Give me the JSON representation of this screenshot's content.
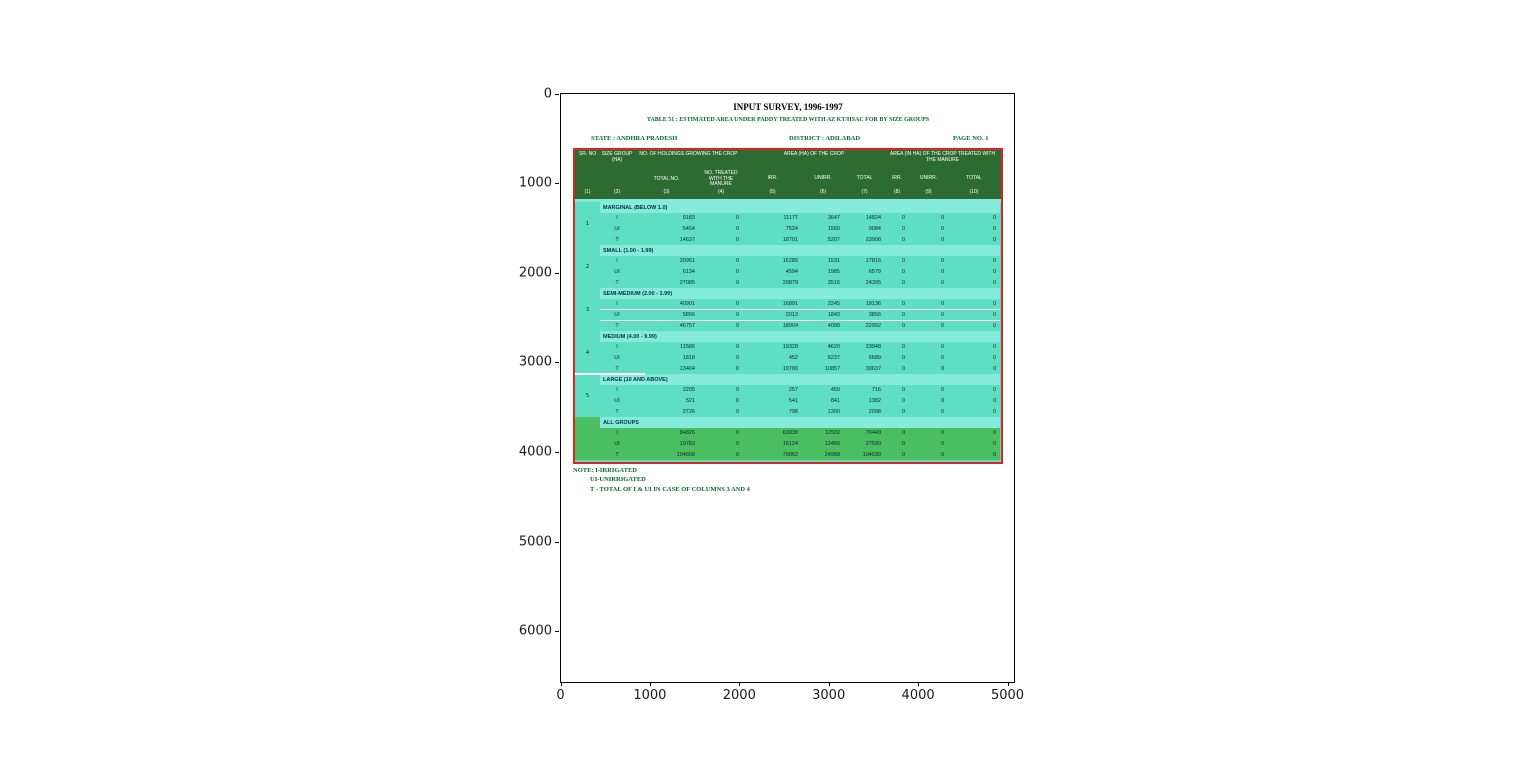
{
  "figure": {
    "x_axis": {
      "ticks": [
        "0",
        "1000",
        "2000",
        "3000",
        "4000",
        "5000"
      ]
    },
    "y_axis": {
      "ticks": [
        "0",
        "1000",
        "2000",
        "3000",
        "4000",
        "5000",
        "6000"
      ]
    }
  },
  "document": {
    "title": "INPUT SURVEY, 1996-1997",
    "subtitle": "TABLE 51 : ESTIMATED AREA UNDER PADDY TREATED WITH AZ KT/HSAC FOR BY SIZE GROUPS",
    "state": "STATE : ANDHRA PRADESH",
    "district": "DISTRICT : ADILABAD",
    "page": "PAGE NO. 1",
    "colors": {
      "header_green": "#2d6b33",
      "label_band": "#85ebdd",
      "data_band": "#5fdfc1",
      "all_groups_band": "#4cbe62",
      "table_border_red": "#de2420",
      "green_text": "#006b2e"
    }
  },
  "chart_data": {
    "type": "table",
    "title": "INPUT SURVEY, 1996-1997",
    "subtitle": "TABLE 51 : ESTIMATED AREA UNDER PADDY TREATED WITH AZ KT/HSAC FOR BY SIZE GROUPS",
    "axes": {
      "x_ticks": [
        0,
        1000,
        2000,
        3000,
        4000,
        5000
      ],
      "y_ticks": [
        0,
        1000,
        2000,
        3000,
        4000,
        5000,
        6000
      ],
      "x_range": [
        0,
        5070
      ],
      "y_range": [
        0,
        6570
      ],
      "grid": false
    },
    "header": {
      "col_sr": "SR. NO",
      "col_size": "SIZE GROUP (HA)",
      "group_holdings": "NO. OF HOLDINGS GROWING THE CROP",
      "holdings_sub": [
        "TOTAL NO.",
        "NO. TREATED WITH THE MANURE"
      ],
      "group_area": "AREA (HA) OF THE CROP",
      "area_sub": [
        "IRR.",
        "UNIRR.",
        "TOTAL"
      ],
      "group_treated": "AREA (IN HA) OF THE CROP TREATED WITH THE MANURE",
      "treated_sub": [
        "IRR.",
        "UNIRR.",
        "TOTAL"
      ],
      "col_numbers": [
        "(1)",
        "(2)",
        "(3)",
        "(4)",
        "(5)",
        "(6)",
        "(7)",
        "(8)",
        "(9)",
        "(10)"
      ]
    },
    "columns": [
      "SR. NO",
      "SIZE GROUP (HA)",
      "TOTAL NO.",
      "NO. TREATED WITH THE MANURE",
      "IRR.",
      "UNIRR.",
      "TOTAL",
      "IRR.",
      "UNIRR.",
      "TOTAL"
    ],
    "sections": [
      {
        "sl_no": "1",
        "label": "MARGINAL (BELOW 1.0)",
        "style": "normal",
        "rows": [
          {
            "type": "I",
            "values": [
              9183,
              0,
              11177,
              3647,
              14824,
              0,
              0,
              0
            ]
          },
          {
            "type": "UI",
            "values": [
              5454,
              0,
              7524,
              1560,
              9084,
              0,
              0,
              0
            ]
          },
          {
            "type": "T",
            "values": [
              14637,
              0,
              18701,
              5207,
              23908,
              0,
              0,
              0
            ]
          }
        ]
      },
      {
        "sl_no": "2",
        "label": "SMALL (1.00 - 1.99)",
        "style": "normal",
        "rows": [
          {
            "type": "I",
            "values": [
              20951,
              0,
              16285,
              1531,
              17816,
              0,
              0,
              0
            ]
          },
          {
            "type": "UI",
            "values": [
              6134,
              0,
              4594,
              1985,
              6579,
              0,
              0,
              0
            ]
          },
          {
            "type": "T",
            "values": [
              27085,
              0,
              20879,
              3516,
              24395,
              0,
              0,
              0
            ]
          }
        ]
      },
      {
        "sl_no": "3",
        "label": "SEMI-MEDIUM (2.00 - 3.99)",
        "style": "separators",
        "rows": [
          {
            "type": "I",
            "values": [
              40901,
              0,
              16891,
              2245,
              19136,
              0,
              0,
              0
            ]
          },
          {
            "type": "UI",
            "values": [
              5856,
              0,
              2013,
              1843,
              3856,
              0,
              0,
              0
            ]
          },
          {
            "type": "T",
            "values": [
              46757,
              0,
              18904,
              4088,
              22992,
              0,
              0,
              0
            ]
          }
        ]
      },
      {
        "sl_no": "4",
        "label": "MEDIUM (4.00 - 9.99)",
        "style": "normal",
        "rows": [
          {
            "type": "I",
            "values": [
              11586,
              0,
              19328,
              4620,
              23948,
              0,
              0,
              0
            ]
          },
          {
            "type": "UI",
            "values": [
              1818,
              0,
              452,
              6237,
              6689,
              0,
              0,
              0
            ]
          },
          {
            "type": "T",
            "values": [
              13404,
              0,
              19780,
              10857,
              30637,
              0,
              0,
              0
            ]
          }
        ]
      },
      {
        "sl_no": "5",
        "label": "LARGE (10 AND ABOVE)",
        "style": "normal",
        "rows": [
          {
            "type": "I",
            "values": [
              2205,
              0,
              257,
              459,
              716,
              0,
              0,
              0
            ]
          },
          {
            "type": "UI",
            "values": [
              521,
              0,
              541,
              841,
              1382,
              0,
              0,
              0
            ]
          },
          {
            "type": "T",
            "values": [
              2726,
              0,
              798,
              1300,
              2098,
              0,
              0,
              0
            ]
          }
        ]
      },
      {
        "sl_no": "",
        "label": "ALL GROUPS",
        "style": "allgroups",
        "rows": [
          {
            "type": "I",
            "values": [
              84826,
              0,
              63938,
              12502,
              76440,
              0,
              0,
              0
            ]
          },
          {
            "type": "UI",
            "values": [
              19783,
              0,
              15124,
              12466,
              27590,
              0,
              0,
              0
            ]
          },
          {
            "type": "T",
            "values": [
              104609,
              0,
              79062,
              24968,
              104030,
              0,
              0,
              0
            ]
          }
        ]
      }
    ],
    "notes": [
      "NOTE: I-IRRIGATED",
      "UI-UNIRRIGATED",
      "T - TOTAL OF I & UI IN CASE OF COLUMNS 3 AND 4"
    ]
  }
}
